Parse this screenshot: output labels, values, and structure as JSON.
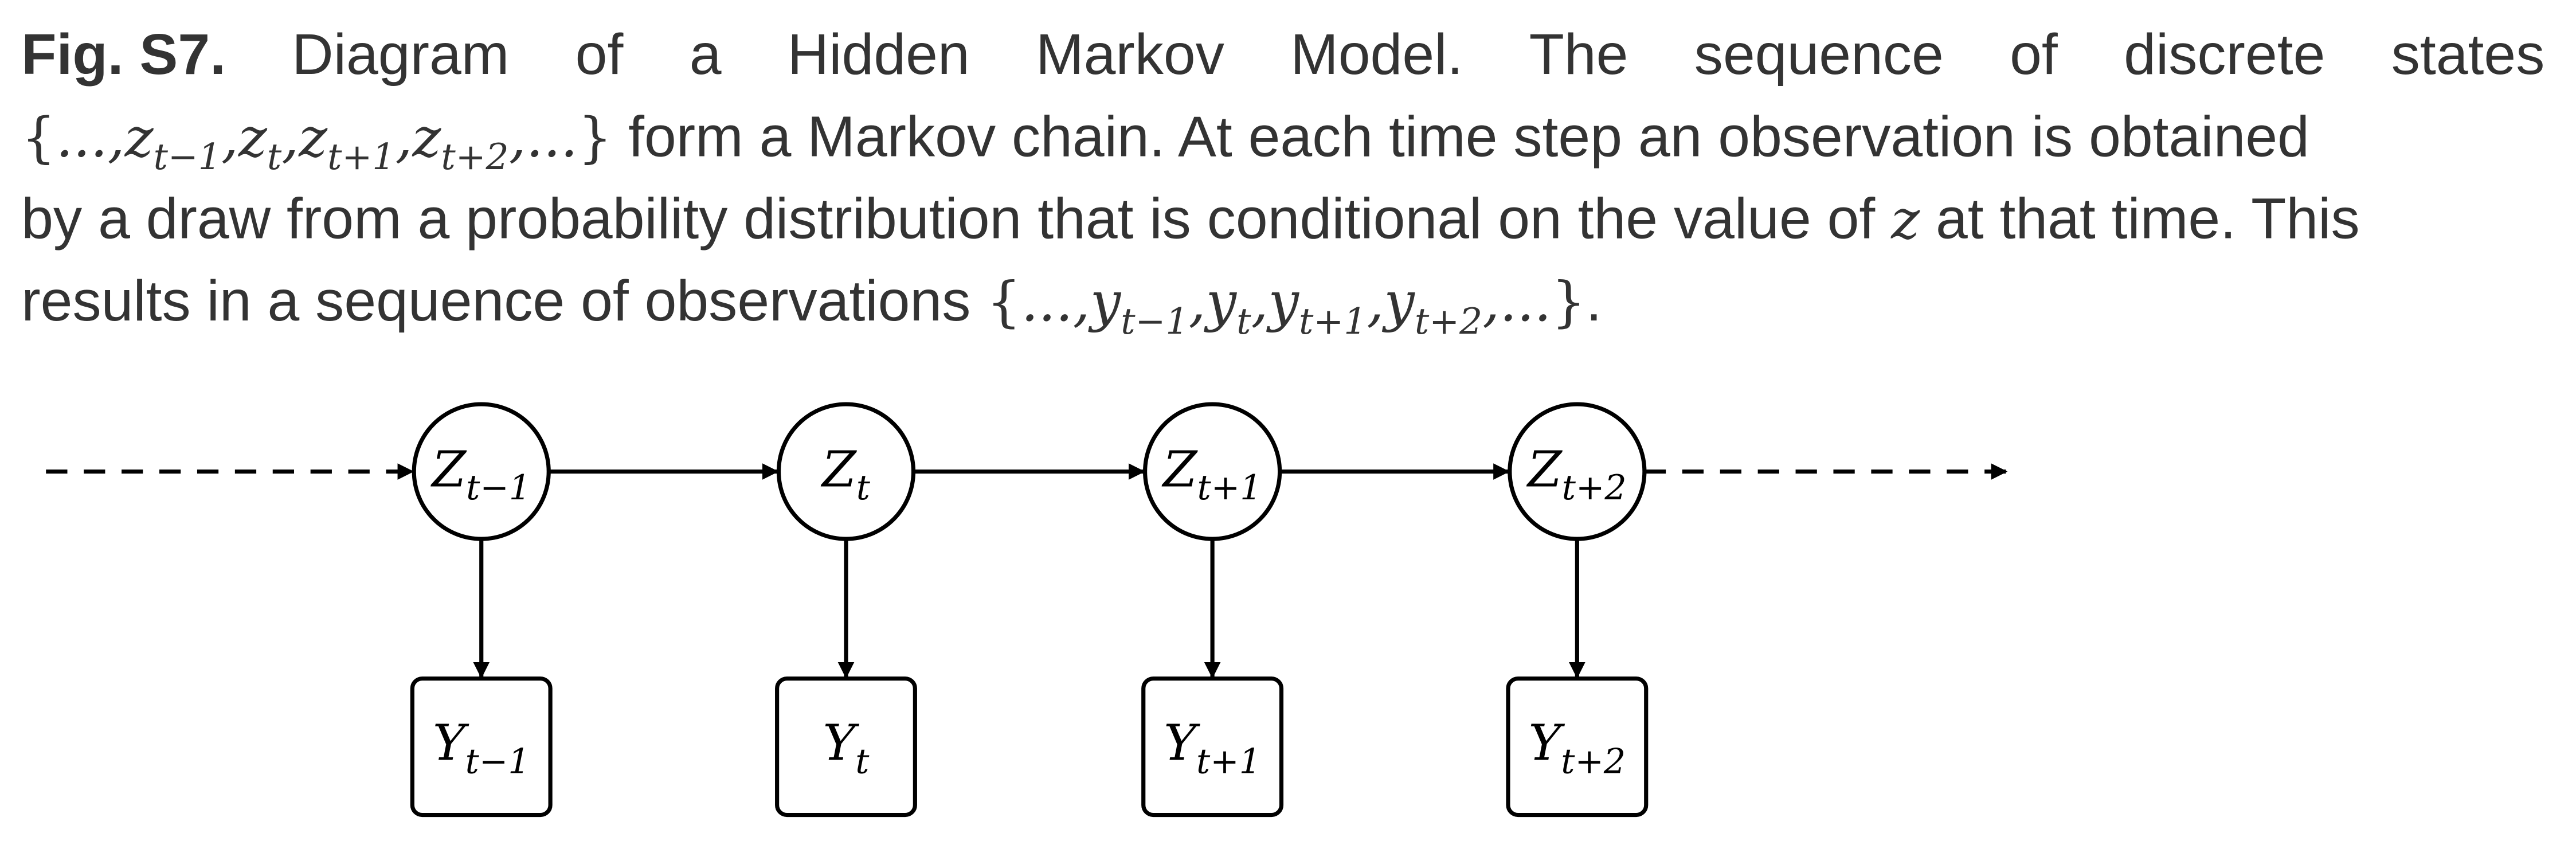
{
  "caption": {
    "fig_label": "Fig. S7.",
    "line1_words": [
      "Diagram",
      "of",
      "a",
      "Hidden",
      "Markov",
      "Model.",
      "The",
      "sequence",
      "of",
      "discrete",
      "states"
    ],
    "line2_text": "form a Markov chain. At each time step an observation is obtained",
    "line3_prefix": "by a draw from a probability distribution that is conditional on the value of",
    "line3_var": "z",
    "line3_suffix": "at that time. This",
    "line4_prefix": "results in a sequence of observations",
    "line4_end": "."
  },
  "states": [
    {
      "sym": "Z",
      "sub": "t−1",
      "lsym": "z",
      "obs": "Y",
      "lobs": "y"
    },
    {
      "sym": "Z",
      "sub": "t",
      "lsym": "z",
      "obs": "Y",
      "lobs": "y"
    },
    {
      "sym": "Z",
      "sub": "t+1",
      "lsym": "z",
      "obs": "Y",
      "lobs": "y"
    },
    {
      "sym": "Z",
      "sub": "t+2",
      "lsym": "z",
      "obs": "Y",
      "lobs": "y"
    }
  ],
  "ellipsis": "...",
  "colors": {
    "text": "#333333",
    "stroke": "#000000"
  }
}
